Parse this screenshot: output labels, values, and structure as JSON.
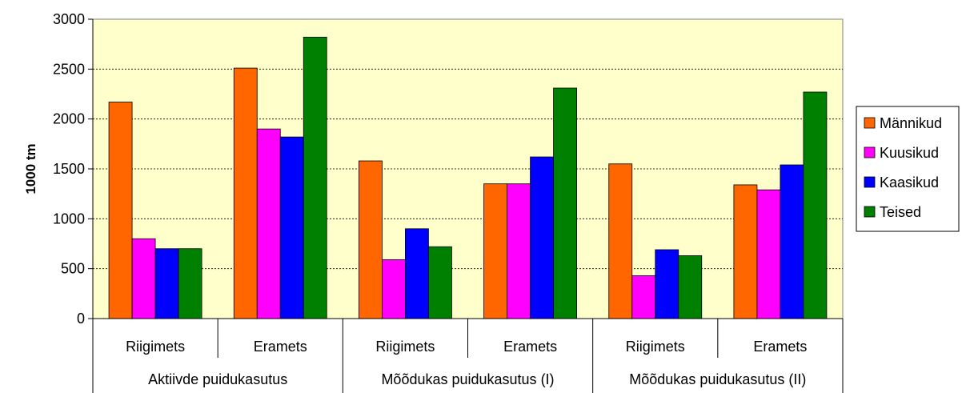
{
  "chart_data": {
    "type": "bar",
    "title": "",
    "xlabel": "",
    "ylabel": "1000 tm",
    "ylim": [
      0,
      3000
    ],
    "yticks": [
      0,
      500,
      1000,
      1500,
      2000,
      2500,
      3000
    ],
    "ytick_labels": [
      "0",
      "500",
      "1000",
      "1500",
      "2000",
      "2500",
      "3000"
    ],
    "grid": "horizontal dashed",
    "legend_position": "right",
    "groups": [
      {
        "label": "Aktiivde puidukasutus",
        "categories": [
          "Riigimets",
          "Eramets"
        ]
      },
      {
        "label": "Mõõdukas puidukasutus (I)",
        "categories": [
          "Riigimets",
          "Eramets"
        ]
      },
      {
        "label": "Mõõdukas puidukasutus (II)",
        "categories": [
          "Riigimets",
          "Eramets"
        ]
      }
    ],
    "categories": [
      "Riigimets",
      "Eramets",
      "Riigimets",
      "Eramets",
      "Riigimets",
      "Eramets"
    ],
    "series": [
      {
        "name": "Männikud",
        "color": "#ff6600",
        "values": [
          2170,
          2510,
          1580,
          1350,
          1550,
          1340
        ]
      },
      {
        "name": "Kuusikud",
        "color": "#ff00ff",
        "values": [
          800,
          1900,
          590,
          1350,
          430,
          1290
        ]
      },
      {
        "name": "Kaasikud",
        "color": "#0000ff",
        "values": [
          700,
          1820,
          900,
          1620,
          690,
          1540
        ]
      },
      {
        "name": "Teised",
        "color": "#008000",
        "values": [
          700,
          2820,
          720,
          2310,
          630,
          2270
        ]
      }
    ],
    "plot_background": "#ffffcc"
  }
}
